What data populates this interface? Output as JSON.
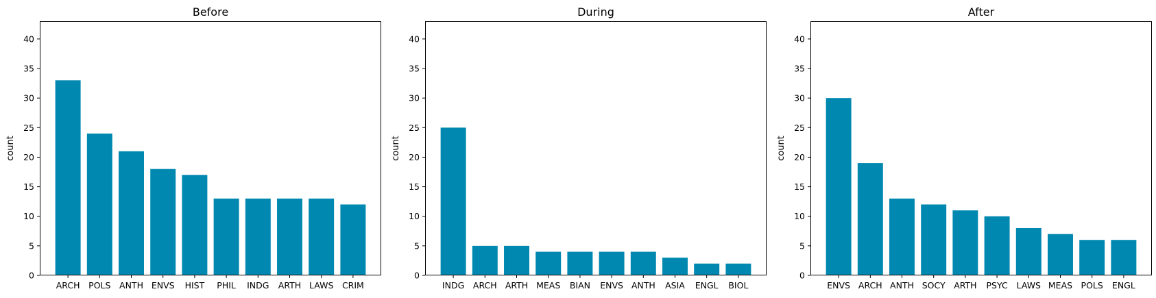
{
  "chart_data": [
    {
      "type": "bar",
      "title": "Before",
      "ylabel": "count",
      "xlabel": "",
      "ylim": [
        0,
        43
      ],
      "yticks": [
        0,
        5,
        10,
        15,
        20,
        25,
        30,
        35,
        40
      ],
      "categories": [
        "ARCH",
        "POLS",
        "ANTH",
        "ENVS",
        "HIST",
        "PHIL",
        "INDG",
        "ARTH",
        "LAWS",
        "CRIM"
      ],
      "values": [
        33,
        24,
        21,
        18,
        17,
        13,
        13,
        13,
        13,
        12
      ],
      "color": "#0088B0",
      "grid": false
    },
    {
      "type": "bar",
      "title": "During",
      "ylabel": "count",
      "xlabel": "",
      "ylim": [
        0,
        43
      ],
      "yticks": [
        0,
        5,
        10,
        15,
        20,
        25,
        30,
        35,
        40
      ],
      "categories": [
        "INDG",
        "ARCH",
        "ARTH",
        "MEAS",
        "BIAN",
        "ENVS",
        "ANTH",
        "ASIA",
        "ENGL",
        "BIOL"
      ],
      "values": [
        25,
        5,
        5,
        4,
        4,
        4,
        4,
        3,
        2,
        2
      ],
      "color": "#0088B0",
      "grid": false
    },
    {
      "type": "bar",
      "title": "After",
      "ylabel": "count",
      "xlabel": "",
      "ylim": [
        0,
        43
      ],
      "yticks": [
        0,
        5,
        10,
        15,
        20,
        25,
        30,
        35,
        40
      ],
      "categories": [
        "ENVS",
        "ARCH",
        "ANTH",
        "SOCY",
        "ARTH",
        "PSYC",
        "LAWS",
        "MEAS",
        "POLS",
        "ENGL"
      ],
      "values": [
        30,
        19,
        13,
        12,
        11,
        10,
        8,
        7,
        6,
        6
      ],
      "color": "#0088B0",
      "grid": false
    }
  ]
}
